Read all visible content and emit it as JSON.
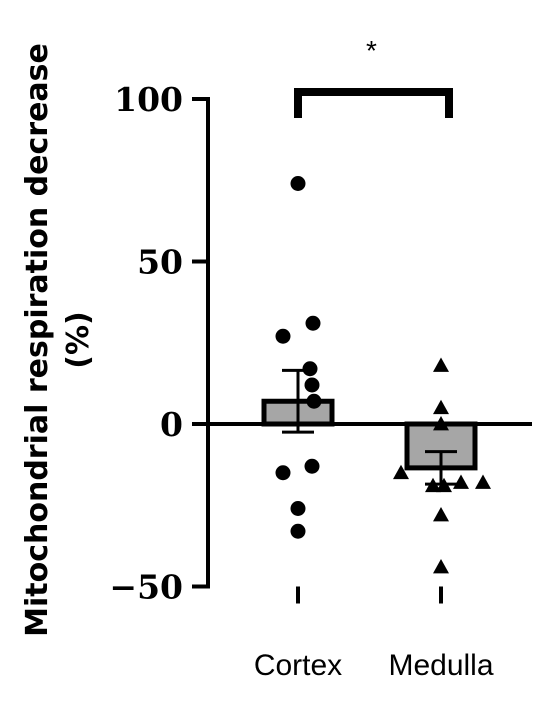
{
  "chart_data": {
    "type": "bar",
    "title": "",
    "xlabel": "",
    "ylabel_line1": "Mitochondrial respiration decrease",
    "ylabel_line2": "(%)",
    "ylim": [
      -50,
      100
    ],
    "yticks": [
      -50,
      0,
      50,
      100
    ],
    "ytick_labels": [
      "−50",
      "0",
      "50",
      "100"
    ],
    "categories": [
      "Cortex",
      "Medulla"
    ],
    "bars": [
      {
        "category": "Cortex",
        "mean": 7,
        "sem": 9.5,
        "color": "#a6a6a6",
        "marker": "circle"
      },
      {
        "category": "Medulla",
        "mean": -13.5,
        "sem": 5,
        "color": "#a6a6a6",
        "marker": "triangle"
      }
    ],
    "points": [
      {
        "category": "Cortex",
        "values": [
          74,
          31,
          27,
          17,
          12,
          7,
          -13,
          -15,
          -26,
          -33
        ]
      },
      {
        "category": "Medulla",
        "values": [
          18,
          0,
          5,
          -15,
          -18,
          -18,
          -19,
          -19,
          -28,
          -44
        ]
      }
    ],
    "significance": {
      "label": "*",
      "between": [
        "Cortex",
        "Medulla"
      ]
    },
    "colors": {
      "bar_fill": "#a6a6a6",
      "ink": "#000000"
    }
  }
}
